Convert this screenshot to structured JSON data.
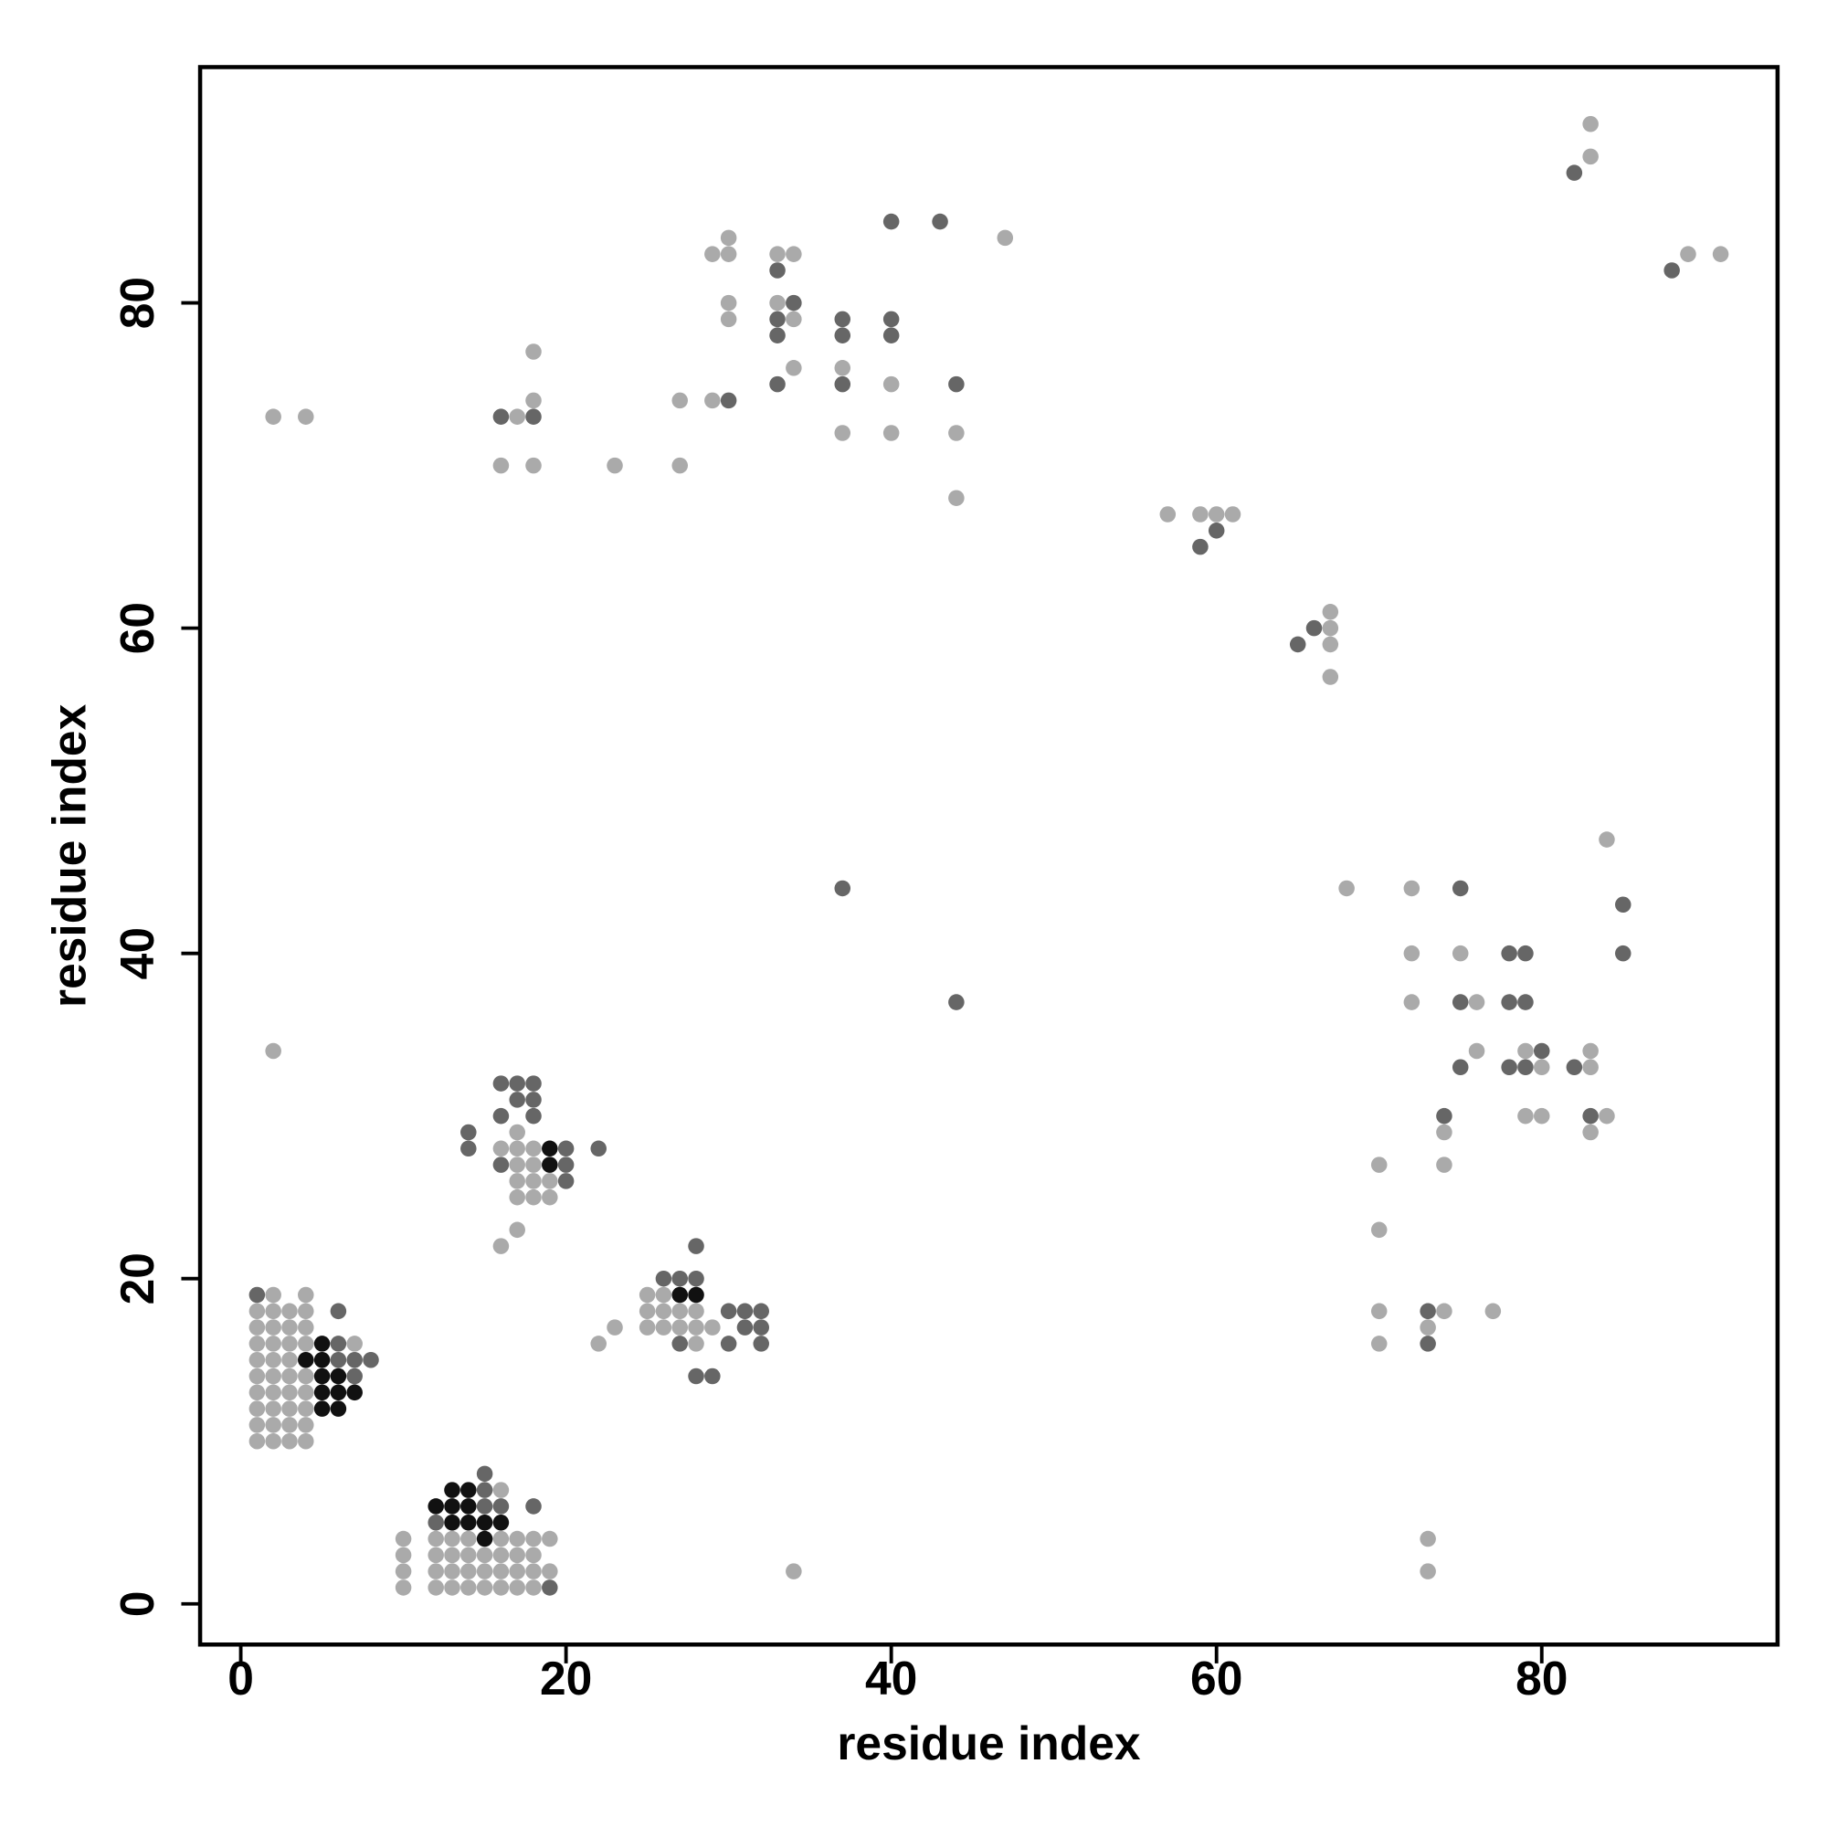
{
  "chart_data": {
    "type": "scatter",
    "xlabel": "residue index",
    "ylabel": "residue index",
    "xlim": [
      -2.5,
      94.5
    ],
    "ylim": [
      -2.5,
      94.5
    ],
    "xticks": [
      0,
      20,
      40,
      60,
      80
    ],
    "yticks": [
      0,
      20,
      40,
      60,
      80
    ],
    "grid": false,
    "series": [
      {
        "color": "#aaaaaa",
        "x": [
          10,
          10,
          10,
          10,
          12,
          13,
          14,
          15,
          16,
          17,
          18,
          12,
          13,
          14,
          15,
          16,
          17,
          18,
          19,
          12,
          13,
          14,
          15,
          16,
          17,
          18,
          12,
          13,
          14,
          16,
          17,
          18,
          19,
          16,
          1,
          2,
          3,
          4,
          1,
          2,
          3,
          4,
          1,
          2,
          3,
          4,
          1,
          2,
          3,
          4,
          1,
          2,
          3,
          4,
          1,
          2,
          3,
          1,
          2,
          3,
          4,
          7,
          1,
          2,
          3,
          4,
          1,
          2,
          3,
          4,
          2,
          4,
          16,
          17,
          17,
          18,
          19,
          17,
          18,
          19,
          17,
          18,
          16,
          17,
          18,
          17,
          22,
          23,
          25,
          26,
          27,
          28,
          29,
          25,
          26,
          27,
          28,
          25,
          26,
          28,
          34,
          2,
          2,
          4,
          17,
          18,
          18,
          16,
          18,
          23,
          27,
          27,
          29,
          29,
          30,
          30,
          30,
          30,
          33,
          34,
          33,
          34,
          34,
          37,
          37,
          40,
          40,
          47,
          44,
          44,
          57,
          59,
          60,
          61,
          67,
          67,
          67,
          67,
          83,
          83,
          89,
          91,
          84,
          68,
          72,
          72,
          75,
          72,
          76,
          76,
          79,
          83,
          80,
          83,
          79,
          80,
          84,
          74,
          83,
          70,
          74,
          70,
          70,
          74,
          77,
          73,
          70,
          73,
          73
        ],
        "y": [
          1,
          2,
          3,
          4,
          1,
          1,
          1,
          1,
          1,
          1,
          1,
          2,
          2,
          2,
          2,
          2,
          2,
          2,
          2,
          3,
          3,
          3,
          3,
          3,
          3,
          3,
          4,
          4,
          4,
          4,
          4,
          4,
          4,
          7,
          10,
          10,
          10,
          10,
          11,
          11,
          11,
          11,
          12,
          12,
          12,
          12,
          13,
          13,
          13,
          13,
          14,
          14,
          14,
          14,
          15,
          15,
          15,
          16,
          16,
          16,
          16,
          16,
          17,
          17,
          17,
          17,
          18,
          18,
          18,
          18,
          19,
          19,
          22,
          23,
          25,
          25,
          25,
          26,
          26,
          26,
          27,
          27,
          28,
          28,
          28,
          29,
          16,
          17,
          17,
          17,
          17,
          17,
          17,
          18,
          18,
          18,
          18,
          19,
          19,
          16,
          2,
          34,
          73,
          73,
          73,
          74,
          77,
          70,
          70,
          70,
          70,
          74,
          74,
          83,
          83,
          84,
          80,
          79,
          83,
          83,
          80,
          79,
          76,
          76,
          72,
          75,
          72,
          84,
          72,
          68,
          67,
          67,
          67,
          67,
          61,
          60,
          59,
          57,
          89,
          91,
          83,
          83,
          47,
          44,
          44,
          40,
          40,
          37,
          37,
          34,
          34,
          34,
          33,
          33,
          30,
          30,
          30,
          29,
          29,
          27,
          27,
          23,
          18,
          18,
          18,
          17,
          16,
          4,
          2
        ]
      },
      {
        "color": "#666666",
        "x": [
          19,
          12,
          15,
          16,
          18,
          15,
          15,
          7,
          6,
          7,
          8,
          6,
          6,
          1,
          20,
          16,
          20,
          14,
          20,
          22,
          14,
          16,
          18,
          17,
          18,
          16,
          17,
          18,
          31,
          32,
          30,
          31,
          32,
          26,
          27,
          28,
          28,
          27,
          30,
          32,
          28,
          29,
          16,
          18,
          30,
          33,
          34,
          33,
          33,
          33,
          37,
          37,
          37,
          40,
          40,
          40,
          43,
          44,
          37,
          44,
          59,
          60,
          65,
          66,
          82,
          88,
          75,
          85,
          78,
          79,
          85,
          75,
          78,
          79,
          80,
          75,
          78,
          79,
          82,
          74,
          83,
          73,
          73
        ],
        "y": [
          1,
          5,
          6,
          6,
          6,
          7,
          8,
          14,
          15,
          15,
          15,
          16,
          18,
          19,
          26,
          27,
          27,
          28,
          28,
          28,
          29,
          30,
          30,
          31,
          31,
          32,
          32,
          32,
          17,
          17,
          18,
          18,
          18,
          20,
          20,
          20,
          22,
          16,
          16,
          16,
          14,
          14,
          73,
          73,
          74,
          82,
          80,
          79,
          78,
          75,
          79,
          78,
          75,
          79,
          78,
          85,
          85,
          75,
          44,
          37,
          65,
          66,
          59,
          60,
          88,
          82,
          44,
          43,
          40,
          40,
          40,
          37,
          37,
          37,
          34,
          33,
          33,
          33,
          33,
          30,
          30,
          18,
          16
        ]
      },
      {
        "color": "#111111",
        "x": [
          15,
          13,
          14,
          15,
          16,
          12,
          13,
          14,
          13,
          14,
          5,
          6,
          5,
          6,
          7,
          5,
          6,
          4,
          5,
          5,
          19,
          19,
          27,
          28
        ],
        "y": [
          4,
          5,
          5,
          5,
          5,
          6,
          6,
          6,
          7,
          7,
          12,
          12,
          13,
          13,
          13,
          14,
          14,
          15,
          15,
          16,
          27,
          28,
          19,
          19
        ]
      }
    ]
  }
}
